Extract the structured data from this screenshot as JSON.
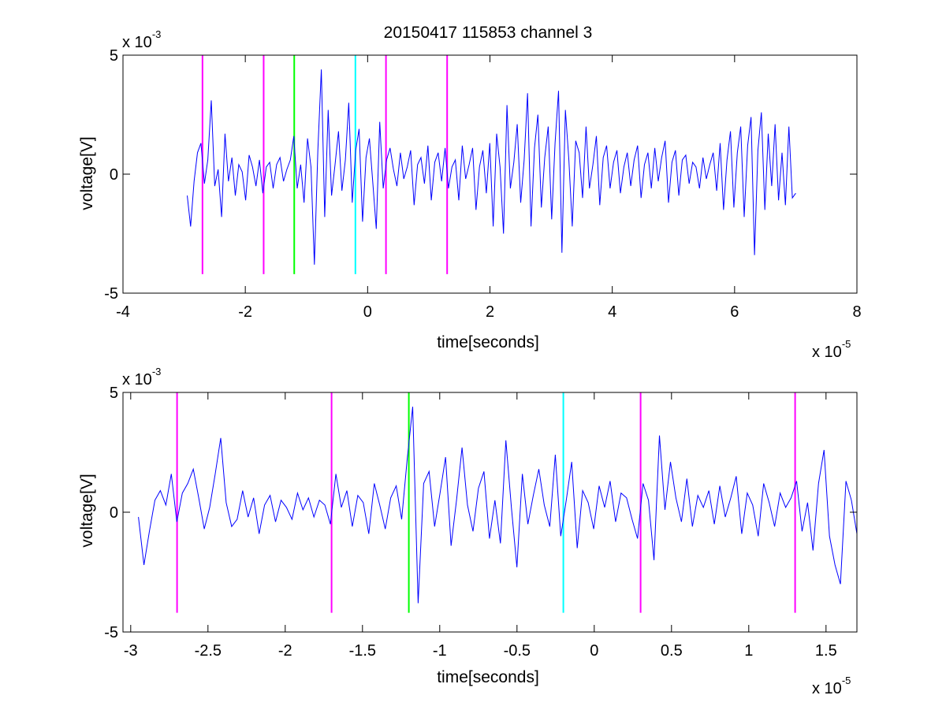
{
  "chart_data": [
    {
      "type": "line",
      "title": "20150417 115853 channel 3",
      "xlabel": "time[seconds]",
      "ylabel": "voltage[V]",
      "x_multiplier": "x 10",
      "x_exponent": "-5",
      "y_multiplier": "x 10",
      "y_exponent": "-3",
      "xlim": [
        -4,
        8
      ],
      "ylim": [
        -5,
        5
      ],
      "xticks": [
        -4,
        -2,
        0,
        2,
        4,
        6,
        8
      ],
      "xtick_labels": [
        "-4",
        "-2",
        "0",
        "2",
        "4",
        "6",
        "8"
      ],
      "yticks": [
        -5,
        0,
        5
      ],
      "ytick_labels": [
        "-5",
        "0",
        "5"
      ],
      "grid": false,
      "signal": {
        "color": "#0000ff",
        "x_start": -2.95,
        "x_end": 7.0,
        "y": [
          -0.9,
          -2.2,
          -0.3,
          0.9,
          1.3,
          -0.4,
          0.6,
          3.1,
          -0.5,
          0.2,
          -1.8,
          1.7,
          -0.3,
          0.7,
          -0.9,
          0.4,
          0.1,
          -1.1,
          0.8,
          0.3,
          -0.5,
          0.6,
          -0.8,
          0.3,
          0.5,
          -0.6,
          0.4,
          0.7,
          -0.3,
          0.2,
          0.6,
          1.6,
          -0.6,
          0.4,
          -1.2,
          1.5,
          0.3,
          -3.8,
          1.0,
          4.4,
          -1.8,
          2.7,
          -0.9,
          0.4,
          1.8,
          -0.7,
          0.6,
          3.0,
          -1.2,
          1.0,
          1.9,
          -2.0,
          0.7,
          1.5,
          -0.4,
          -2.3,
          2.2,
          -0.6,
          0.6,
          1.1,
          0.2,
          -0.5,
          0.9,
          -0.2,
          0.3,
          1.0,
          -1.3,
          0.4,
          0.7,
          -0.4,
          1.2,
          -1.1,
          0.5,
          0.9,
          -0.3,
          1.1,
          -0.6,
          0.3,
          0.6,
          -1.1,
          1.2,
          -0.2,
          0.4,
          1.1,
          -1.5,
          0.3,
          1.0,
          -0.8,
          1.3,
          -2.2,
          1.7,
          0.3,
          -2.5,
          2.9,
          -0.6,
          0.5,
          2.1,
          -1.2,
          0.6,
          3.4,
          -2.2,
          1.1,
          2.5,
          -1.4,
          0.7,
          2.0,
          -1.9,
          1.3,
          3.5,
          -3.3,
          2.7,
          0.6,
          -2.2,
          1.4,
          0.9,
          -1.0,
          2.0,
          -0.6,
          0.4,
          1.6,
          -1.3,
          0.7,
          1.2,
          -0.6,
          0.5,
          1.0,
          -0.8,
          0.3,
          0.9,
          -0.5,
          0.6,
          1.2,
          -1.0,
          0.4,
          0.9,
          -0.6,
          1.1,
          -0.3,
          0.7,
          1.4,
          -1.2,
          0.5,
          1.0,
          -0.9,
          0.6,
          0.8,
          -0.4,
          0.5,
          0.3,
          -0.6,
          0.7,
          -0.2,
          0.4,
          0.9,
          -0.7,
          1.3,
          -1.5,
          0.6,
          1.8,
          -1.4,
          0.9,
          2.0,
          -1.8,
          1.2,
          2.4,
          -3.4,
          1.0,
          2.6,
          -1.5,
          1.7,
          -0.5,
          2.1,
          -1.1,
          0.9,
          -1.3,
          2.0,
          -1.0,
          -0.8
        ],
        "note_y_units": "y values in units of 10^-3 V"
      },
      "markers": [
        {
          "x": -2.7,
          "color": "#ff00ff"
        },
        {
          "x": -1.7,
          "color": "#ff00ff"
        },
        {
          "x": -1.2,
          "color": "#00ff00"
        },
        {
          "x": -0.2,
          "color": "#00ffff"
        },
        {
          "x": 0.3,
          "color": "#ff00ff"
        },
        {
          "x": 1.3,
          "color": "#ff00ff"
        }
      ],
      "marker_y_range": [
        -4.2,
        5.0
      ]
    },
    {
      "type": "line",
      "title": "",
      "xlabel": "time[seconds]",
      "ylabel": "voltage[V]",
      "x_multiplier": "x 10",
      "x_exponent": "-5",
      "y_multiplier": "x 10",
      "y_exponent": "-3",
      "xlim": [
        -3.05,
        1.7
      ],
      "ylim": [
        -5,
        5
      ],
      "xticks": [
        -3,
        -2.5,
        -2,
        -1.5,
        -1,
        -0.5,
        0,
        0.5,
        1,
        1.5
      ],
      "xtick_labels": [
        "-3",
        "-2.5",
        "-2",
        "-1.5",
        "-1",
        "-0.5",
        "0",
        "0.5",
        "1",
        "1.5"
      ],
      "yticks": [
        -5,
        0,
        5
      ],
      "ytick_labels": [
        "-5",
        "0",
        "5"
      ],
      "grid": false,
      "signal": {
        "color": "#0000ff",
        "x_start": -2.95,
        "x_end": 1.7,
        "y": [
          -0.2,
          -2.2,
          -0.8,
          0.5,
          0.9,
          0.3,
          1.6,
          -0.4,
          0.8,
          1.2,
          1.8,
          0.6,
          -0.7,
          0.2,
          1.6,
          3.1,
          0.4,
          -0.6,
          -0.3,
          0.9,
          -0.2,
          0.6,
          -0.9,
          0.3,
          0.7,
          -0.4,
          0.5,
          0.2,
          -0.3,
          0.8,
          0.1,
          0.6,
          -0.2,
          0.5,
          0.3,
          -0.5,
          1.6,
          0.2,
          0.9,
          -0.6,
          0.7,
          0.4,
          -0.9,
          1.2,
          0.3,
          -0.7,
          0.6,
          1.1,
          -0.3,
          2.2,
          4.4,
          -3.8,
          1.2,
          1.7,
          -0.6,
          0.8,
          2.3,
          -1.4,
          0.5,
          2.7,
          0.3,
          -0.8,
          1.0,
          1.7,
          -1.1,
          0.5,
          -1.3,
          3.0,
          0.2,
          -2.3,
          1.6,
          -0.5,
          0.7,
          1.8,
          0.3,
          -0.6,
          2.4,
          -1.0,
          0.5,
          2.1,
          -1.5,
          0.9,
          0.4,
          -0.7,
          1.1,
          0.2,
          1.3,
          -0.4,
          0.8,
          0.6,
          -0.3,
          -1.1,
          1.2,
          0.5,
          -2.0,
          3.2,
          0.1,
          2.1,
          0.6,
          -0.4,
          1.4,
          -0.6,
          0.7,
          0.2,
          0.9,
          -0.5,
          1.1,
          -0.2,
          0.6,
          1.5,
          -0.9,
          0.8,
          0.3,
          -1.0,
          1.2,
          0.4,
          -0.6,
          0.8,
          0.2,
          0.6,
          1.3,
          -0.8,
          0.4,
          -1.6,
          1.2,
          2.6,
          -1.0,
          -2.2,
          -3.0,
          1.3,
          0.5,
          -0.9
        ]
      },
      "markers": [
        {
          "x": -2.7,
          "color": "#ff00ff"
        },
        {
          "x": -1.7,
          "color": "#ff00ff"
        },
        {
          "x": -1.2,
          "color": "#00ff00"
        },
        {
          "x": -0.2,
          "color": "#00ffff"
        },
        {
          "x": 0.3,
          "color": "#ff00ff"
        },
        {
          "x": 1.3,
          "color": "#ff00ff"
        }
      ],
      "marker_y_range": [
        -4.2,
        5.0
      ]
    }
  ]
}
